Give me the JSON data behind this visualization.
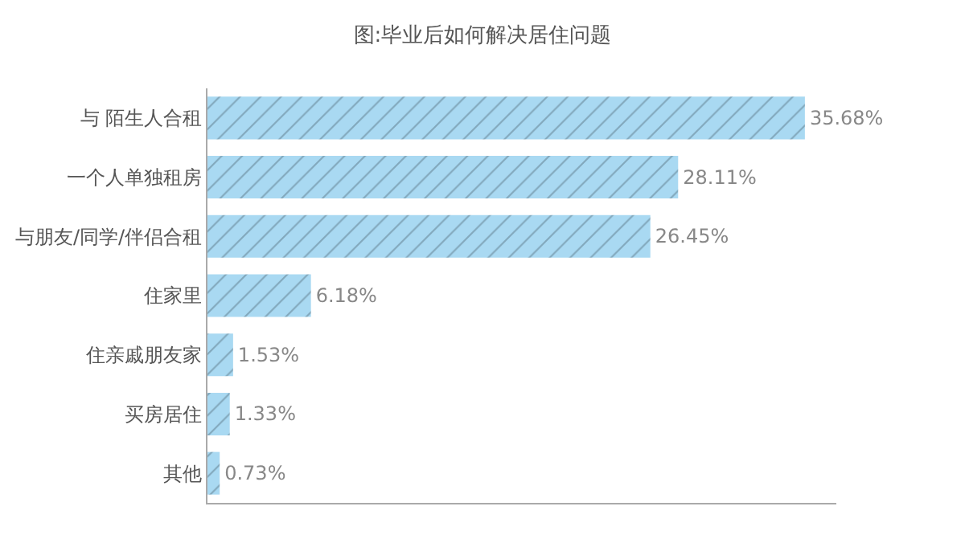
{
  "chart_data": {
    "type": "bar",
    "orientation": "horizontal",
    "title": "图:毕业后如何解决居住问题",
    "categories": [
      "与 陌生人合租",
      "一个人单独租房",
      "与朋友/同学/伴侣合租",
      "住家里",
      "住亲戚朋友家",
      "买房居住",
      "其他"
    ],
    "values": [
      35.68,
      28.11,
      26.45,
      6.18,
      1.53,
      1.33,
      0.73
    ],
    "value_labels": [
      "35.68%",
      "28.11%",
      "26.45%",
      "6.18%",
      "1.53%",
      "1.33%",
      "0.73%"
    ],
    "color": "#a9d9f2",
    "legend": false
  }
}
